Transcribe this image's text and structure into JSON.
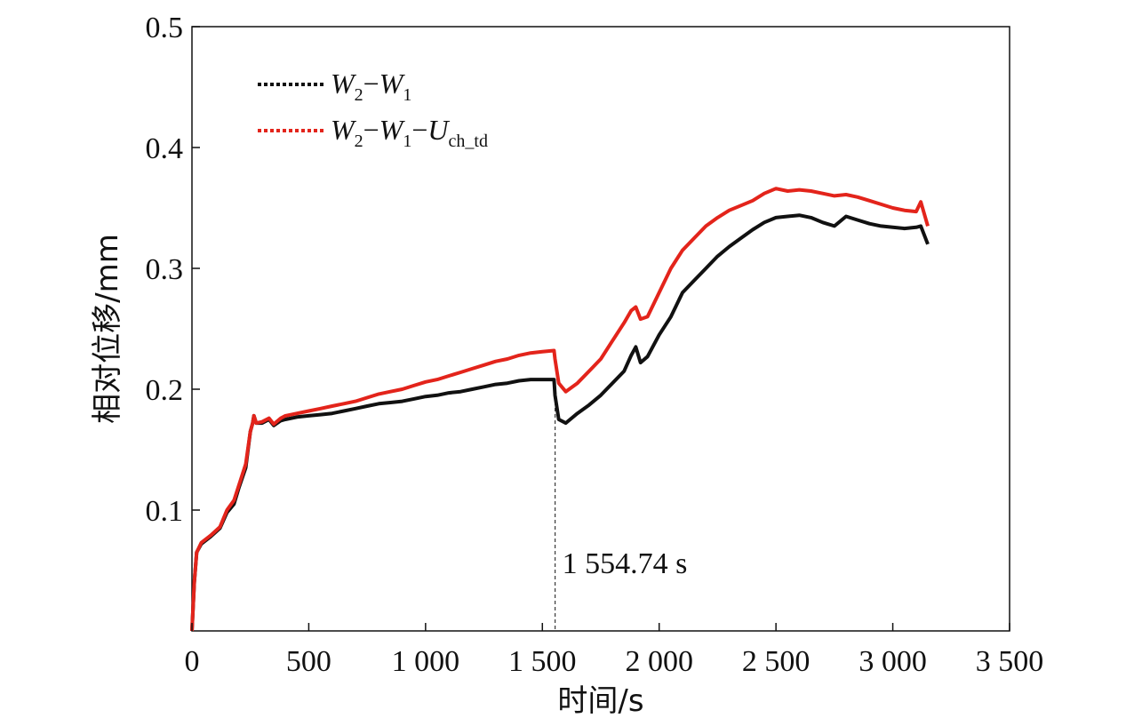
{
  "chart_data": {
    "type": "line",
    "xlabel": "时间/s",
    "ylabel": "相对位移/mm",
    "xlim": [
      0,
      3500
    ],
    "ylim": [
      0,
      0.5
    ],
    "x_ticks": [
      0,
      500,
      1000,
      1500,
      2000,
      2500,
      3000,
      3500
    ],
    "x_tick_labels": [
      "0",
      "500",
      "1 000",
      "1 500",
      "2 000",
      "2 500",
      "3 000",
      "3 500"
    ],
    "y_ticks": [
      0.1,
      0.2,
      0.3,
      0.4,
      0.5
    ],
    "y_tick_labels": [
      "0.1",
      "0.2",
      "0.3",
      "0.4",
      "0.5"
    ],
    "grid": false,
    "legend_position": "top-left",
    "annotation": {
      "x": 1554.74,
      "text": "1 554.74 s"
    },
    "series": [
      {
        "name_parts": {
          "a": "W",
          "a_sub": "2",
          "sep1": "−",
          "b": "W",
          "b_sub": "1"
        },
        "color": "#111111",
        "x": [
          0,
          10,
          20,
          40,
          80,
          120,
          150,
          180,
          200,
          230,
          250,
          260,
          265,
          275,
          300,
          330,
          350,
          380,
          400,
          450,
          500,
          550,
          600,
          650,
          700,
          750,
          800,
          850,
          900,
          950,
          1000,
          1050,
          1100,
          1150,
          1200,
          1250,
          1300,
          1350,
          1400,
          1450,
          1500,
          1550,
          1554,
          1570,
          1600,
          1650,
          1700,
          1750,
          1800,
          1850,
          1880,
          1900,
          1920,
          1950,
          2000,
          2050,
          2100,
          2150,
          2200,
          2250,
          2300,
          2350,
          2400,
          2450,
          2500,
          2550,
          2600,
          2650,
          2700,
          2750,
          2800,
          2850,
          2900,
          2950,
          3000,
          3050,
          3100,
          3120,
          3150
        ],
        "y": [
          0.0,
          0.04,
          0.065,
          0.072,
          0.078,
          0.085,
          0.098,
          0.105,
          0.118,
          0.135,
          0.165,
          0.172,
          0.178,
          0.172,
          0.172,
          0.175,
          0.17,
          0.174,
          0.175,
          0.177,
          0.178,
          0.179,
          0.18,
          0.182,
          0.184,
          0.186,
          0.188,
          0.189,
          0.19,
          0.192,
          0.194,
          0.195,
          0.197,
          0.198,
          0.2,
          0.202,
          0.204,
          0.205,
          0.207,
          0.208,
          0.208,
          0.208,
          0.195,
          0.175,
          0.172,
          0.18,
          0.187,
          0.195,
          0.205,
          0.215,
          0.228,
          0.235,
          0.222,
          0.227,
          0.245,
          0.26,
          0.28,
          0.29,
          0.3,
          0.31,
          0.318,
          0.325,
          0.332,
          0.338,
          0.342,
          0.343,
          0.344,
          0.342,
          0.338,
          0.335,
          0.343,
          0.34,
          0.337,
          0.335,
          0.334,
          0.333,
          0.334,
          0.335,
          0.32
        ]
      },
      {
        "name_parts": {
          "a": "W",
          "a_sub": "2",
          "sep1": "−",
          "b": "W",
          "b_sub": "1",
          "sep2": "−",
          "c": "U",
          "c_sub": "ch_td"
        },
        "color": "#e3241b",
        "x": [
          0,
          10,
          20,
          40,
          80,
          120,
          150,
          180,
          200,
          230,
          250,
          260,
          265,
          275,
          300,
          330,
          350,
          380,
          400,
          450,
          500,
          550,
          600,
          650,
          700,
          750,
          800,
          850,
          900,
          950,
          1000,
          1050,
          1100,
          1150,
          1200,
          1250,
          1300,
          1350,
          1400,
          1450,
          1500,
          1550,
          1554,
          1570,
          1600,
          1650,
          1700,
          1750,
          1800,
          1850,
          1880,
          1900,
          1920,
          1950,
          2000,
          2050,
          2100,
          2150,
          2200,
          2250,
          2300,
          2350,
          2400,
          2450,
          2500,
          2550,
          2600,
          2650,
          2700,
          2750,
          2800,
          2850,
          2900,
          2950,
          3000,
          3050,
          3100,
          3120,
          3150
        ],
        "y": [
          0.0,
          0.04,
          0.065,
          0.073,
          0.079,
          0.086,
          0.1,
          0.108,
          0.12,
          0.138,
          0.165,
          0.172,
          0.178,
          0.172,
          0.173,
          0.176,
          0.171,
          0.176,
          0.178,
          0.18,
          0.182,
          0.184,
          0.186,
          0.188,
          0.19,
          0.193,
          0.196,
          0.198,
          0.2,
          0.203,
          0.206,
          0.208,
          0.211,
          0.214,
          0.217,
          0.22,
          0.223,
          0.225,
          0.228,
          0.23,
          0.231,
          0.232,
          0.225,
          0.205,
          0.198,
          0.205,
          0.215,
          0.225,
          0.24,
          0.255,
          0.265,
          0.268,
          0.258,
          0.26,
          0.28,
          0.3,
          0.315,
          0.325,
          0.335,
          0.342,
          0.348,
          0.352,
          0.356,
          0.362,
          0.366,
          0.364,
          0.365,
          0.364,
          0.362,
          0.36,
          0.361,
          0.359,
          0.356,
          0.353,
          0.35,
          0.348,
          0.347,
          0.355,
          0.335
        ]
      }
    ]
  }
}
